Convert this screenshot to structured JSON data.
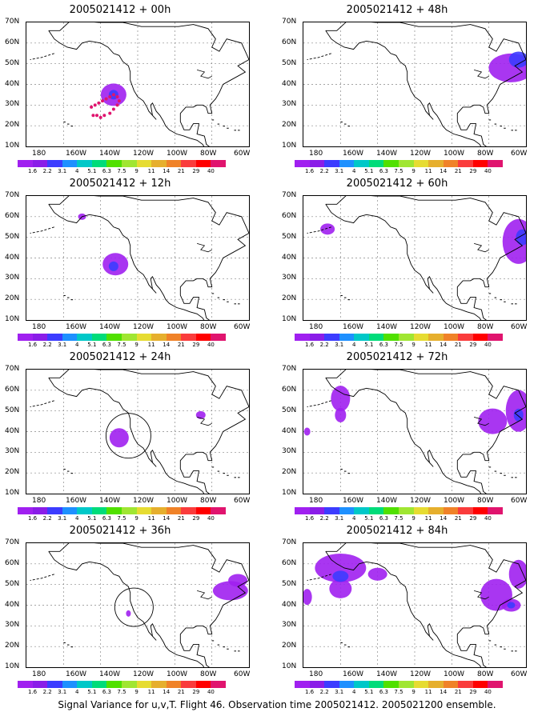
{
  "lat_labels": [
    "70N",
    "60N",
    "50N",
    "40N",
    "30N",
    "20N",
    "10N"
  ],
  "lon_labels": [
    "180",
    "160W",
    "140W",
    "120W",
    "100W",
    "80W",
    "60W"
  ],
  "colorbar": {
    "labels": [
      "1.6",
      "2.2",
      "3.1",
      "4",
      "5.1",
      "6.3",
      "7.5",
      "9",
      "11",
      "14",
      "21",
      "29",
      "40"
    ],
    "colors": [
      "#a020f0",
      "#8a1de8",
      "#3c3cff",
      "#1e90ff",
      "#00c8c8",
      "#00dc7a",
      "#50e000",
      "#a0e632",
      "#e6dc32",
      "#e6af2d",
      "#f08228",
      "#fa3c3c",
      "#ff0000",
      "#e0146e"
    ]
  },
  "panels": [
    {
      "title": "2005021412 + 00h",
      "blobs": [
        {
          "lon": -133,
          "lat": 35,
          "rx": 16,
          "ry": 14,
          "color": "#a020f0"
        },
        {
          "lon": -133,
          "lat": 35,
          "rx": 6,
          "ry": 6,
          "color": "#3c3cff"
        }
      ],
      "dots": [
        [
          -145,
          29
        ],
        [
          -143,
          30
        ],
        [
          -141,
          31
        ],
        [
          -139,
          32
        ],
        [
          -137,
          33
        ],
        [
          -135,
          34
        ],
        [
          -133,
          35
        ],
        [
          -131,
          34
        ],
        [
          -130,
          32
        ],
        [
          -131,
          30
        ],
        [
          -133,
          28
        ],
        [
          -135,
          26
        ],
        [
          -138,
          25
        ],
        [
          -140,
          24
        ],
        [
          -142,
          25
        ],
        [
          -144,
          25
        ]
      ],
      "circle": null
    },
    {
      "title": "2005021412 + 48h",
      "blobs": [
        {
          "lon": -68,
          "lat": 48,
          "rx": 28,
          "ry": 18,
          "color": "#a020f0"
        },
        {
          "lon": -64,
          "lat": 52,
          "rx": 12,
          "ry": 10,
          "color": "#3c3cff"
        }
      ],
      "dots": [],
      "circle": null
    },
    {
      "title": "2005021412 + 12h",
      "blobs": [
        {
          "lon": -150,
          "lat": 60,
          "rx": 5,
          "ry": 4,
          "color": "#a020f0"
        },
        {
          "lon": -132,
          "lat": 37,
          "rx": 16,
          "ry": 14,
          "color": "#a020f0"
        },
        {
          "lon": -133,
          "lat": 36,
          "rx": 6,
          "ry": 6,
          "color": "#3c3cff"
        }
      ],
      "dots": [],
      "circle": null
    },
    {
      "title": "2005021412 + 60h",
      "blobs": [
        {
          "lon": -167,
          "lat": 54,
          "rx": 9,
          "ry": 7,
          "color": "#a020f0"
        },
        {
          "lon": -64,
          "lat": 48,
          "rx": 20,
          "ry": 28,
          "color": "#a020f0"
        },
        {
          "lon": -62,
          "lat": 50,
          "rx": 8,
          "ry": 10,
          "color": "#3c3cff"
        }
      ],
      "dots": [],
      "circle": null
    },
    {
      "title": "2005021412 + 24h",
      "blobs": [
        {
          "lon": -130,
          "lat": 37,
          "rx": 12,
          "ry": 12,
          "color": "#a020f0"
        },
        {
          "lon": -86,
          "lat": 48,
          "rx": 6,
          "ry": 5,
          "color": "#a020f0"
        }
      ],
      "dots": [],
      "circle": {
        "lon": -125,
        "lat": 38,
        "r": 28
      }
    },
    {
      "title": "2005021412 + 72h",
      "blobs": [
        {
          "lon": -160,
          "lat": 56,
          "rx": 12,
          "ry": 16,
          "color": "#a020f0"
        },
        {
          "lon": -160,
          "lat": 48,
          "rx": 7,
          "ry": 9,
          "color": "#a020f0"
        },
        {
          "lon": -178,
          "lat": 40,
          "rx": 4,
          "ry": 5,
          "color": "#a020f0"
        },
        {
          "lon": -78,
          "lat": 45,
          "rx": 18,
          "ry": 16,
          "color": "#a020f0"
        },
        {
          "lon": -64,
          "lat": 50,
          "rx": 16,
          "ry": 26,
          "color": "#a020f0"
        },
        {
          "lon": -64,
          "lat": 48,
          "rx": 6,
          "ry": 8,
          "color": "#3c3cff"
        }
      ],
      "dots": [],
      "circle": null
    },
    {
      "title": "2005021412 + 36h",
      "blobs": [
        {
          "lon": -125,
          "lat": 36,
          "rx": 3,
          "ry": 4,
          "color": "#a020f0"
        },
        {
          "lon": -70,
          "lat": 47,
          "rx": 22,
          "ry": 12,
          "color": "#a020f0"
        },
        {
          "lon": -66,
          "lat": 52,
          "rx": 12,
          "ry": 8,
          "color": "#a020f0"
        }
      ],
      "dots": [],
      "circle": {
        "lon": -122,
        "lat": 39,
        "r": 24
      }
    },
    {
      "title": "2005021412 + 84h",
      "blobs": [
        {
          "lon": -160,
          "lat": 58,
          "rx": 32,
          "ry": 18,
          "color": "#a020f0"
        },
        {
          "lon": -160,
          "lat": 48,
          "rx": 14,
          "ry": 12,
          "color": "#a020f0"
        },
        {
          "lon": -160,
          "lat": 54,
          "rx": 10,
          "ry": 7,
          "color": "#3c3cff"
        },
        {
          "lon": -140,
          "lat": 55,
          "rx": 12,
          "ry": 8,
          "color": "#a020f0"
        },
        {
          "lon": -178,
          "lat": 44,
          "rx": 6,
          "ry": 10,
          "color": "#a020f0"
        },
        {
          "lon": -76,
          "lat": 45,
          "rx": 20,
          "ry": 20,
          "color": "#a020f0"
        },
        {
          "lon": -64,
          "lat": 55,
          "rx": 12,
          "ry": 18,
          "color": "#a020f0"
        },
        {
          "lon": -68,
          "lat": 40,
          "rx": 12,
          "ry": 8,
          "color": "#a020f0"
        },
        {
          "lon": -68,
          "lat": 40,
          "rx": 5,
          "ry": 4,
          "color": "#3c3cff"
        }
      ],
      "dots": [],
      "circle": null
    }
  ],
  "caption": "Signal Variance for u,v,T. Flight 46. Observation time 2005021412. 2005021200 ensemble."
}
